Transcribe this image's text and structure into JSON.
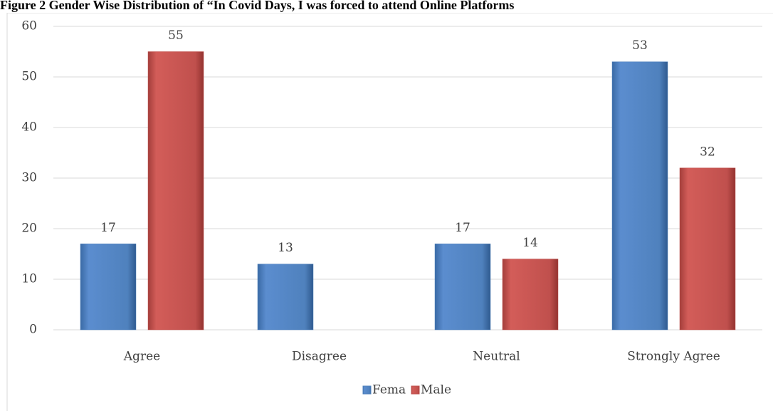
{
  "chart_data": {
    "type": "bar",
    "title": "Figure 2 Gender Wise Distribution of “In Covid Days, I was forced to attend Online Platforms",
    "categories": [
      "Agree",
      "Disagree",
      "Neutral",
      "Strongly Agree"
    ],
    "series": [
      {
        "name": "Fema",
        "color": "#4f81bd",
        "values": [
          17,
          13,
          17,
          53
        ]
      },
      {
        "name": "Male",
        "color": "#c0504d",
        "values": [
          55,
          null,
          14,
          32
        ]
      }
    ],
    "ylim": [
      0,
      60
    ],
    "yticks": [
      0,
      10,
      20,
      30,
      40,
      50,
      60
    ],
    "grid": true,
    "legend": "bottom"
  }
}
